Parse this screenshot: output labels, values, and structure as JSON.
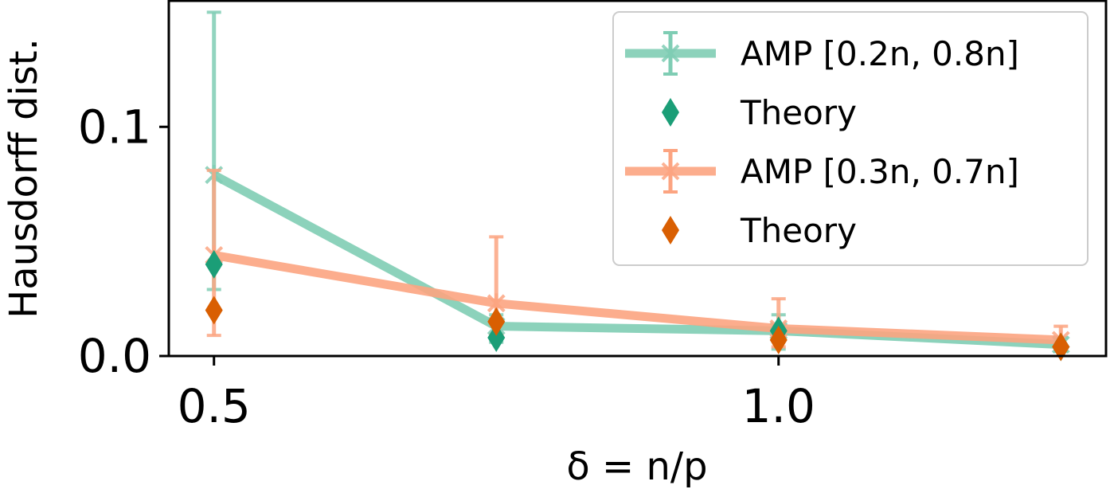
{
  "chart_data": {
    "type": "line",
    "xlabel": "δ = n/p",
    "ylabel": "Hausdorff dist.",
    "xlim": [
      0.46,
      1.29
    ],
    "ylim": [
      0.0,
      0.155
    ],
    "xticks": [
      {
        "v": 0.5,
        "label": "0.5"
      },
      {
        "v": 1.0,
        "label": "1.0"
      }
    ],
    "yticks": [
      {
        "v": 0.0,
        "label": "0.0"
      },
      {
        "v": 0.1,
        "label": "0.1"
      }
    ],
    "grid": false,
    "legend_position": "top-right",
    "series": [
      {
        "name": "AMP [0.2n, 0.8n]",
        "kind": "line-errorbar",
        "color": "#7fcdb4",
        "x": [
          0.5,
          0.75,
          1.0,
          1.25
        ],
        "y": [
          0.079,
          0.013,
          0.011,
          0.005
        ],
        "err_low": [
          0.029,
          0.006,
          0.003,
          0.002
        ],
        "err_high": [
          0.15,
          0.018,
          0.018,
          0.008
        ]
      },
      {
        "name": "Theory",
        "kind": "marker",
        "marker": "diamond",
        "color": "#1b9e77",
        "x": [
          0.5,
          0.75,
          1.0,
          1.25
        ],
        "y": [
          0.04,
          0.008,
          0.011,
          0.004
        ]
      },
      {
        "name": "AMP [0.3n, 0.7n]",
        "kind": "line-errorbar",
        "color": "#fca481",
        "x": [
          0.5,
          0.75,
          1.0,
          1.25
        ],
        "y": [
          0.044,
          0.023,
          0.012,
          0.007
        ],
        "err_low": [
          0.009,
          0.009,
          0.004,
          0.003
        ],
        "err_high": [
          0.081,
          0.052,
          0.025,
          0.013
        ]
      },
      {
        "name": "Theory",
        "kind": "marker",
        "marker": "diamond",
        "color": "#d95f02",
        "x": [
          0.5,
          0.75,
          1.0,
          1.25
        ],
        "y": [
          0.02,
          0.015,
          0.007,
          0.004
        ]
      }
    ]
  }
}
